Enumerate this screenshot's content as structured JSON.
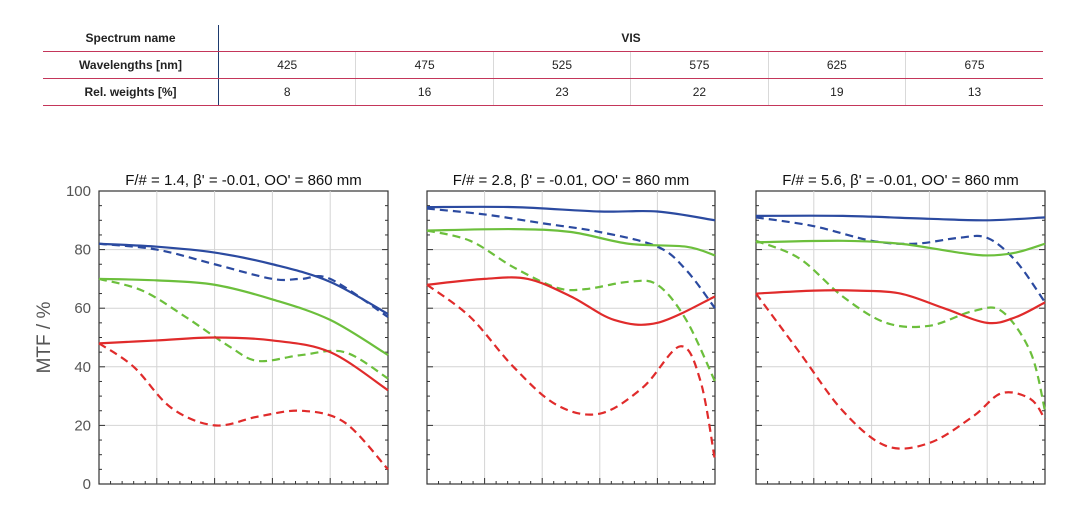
{
  "table": {
    "rows": [
      {
        "label": "Spectrum name",
        "span_value": "VIS"
      },
      {
        "label": "Wavelengths [nm]",
        "values": [
          "425",
          "475",
          "525",
          "575",
          "625",
          "675"
        ]
      },
      {
        "label": "Rel. weights [%]",
        "values": [
          "8",
          "16",
          "23",
          "22",
          "19",
          "13"
        ]
      }
    ]
  },
  "chart_data": [
    {
      "type": "line",
      "title": "F/# = 1.4, β' = -0.01, OO' = 860 mm",
      "ylabel": "MTF / %",
      "ylim": [
        0,
        100
      ],
      "yticks": [
        "0",
        "20",
        "40",
        "60",
        "80",
        "100"
      ],
      "grid": true,
      "series": [
        {
          "color": "#2b4aa0",
          "style": "solid",
          "x": [
            0,
            0.2,
            0.4,
            0.6,
            0.8,
            1.0
          ],
          "values": [
            82,
            81,
            79,
            75,
            69,
            58
          ]
        },
        {
          "color": "#2b4aa0",
          "style": "dashed",
          "x": [
            0,
            0.2,
            0.4,
            0.6,
            0.7,
            0.8,
            1.0
          ],
          "values": [
            82,
            80,
            75,
            70,
            70,
            70,
            57
          ]
        },
        {
          "color": "#6cbf3c",
          "style": "solid",
          "x": [
            0,
            0.2,
            0.4,
            0.6,
            0.8,
            1.0
          ],
          "values": [
            70,
            69.5,
            68,
            63,
            56,
            44
          ]
        },
        {
          "color": "#6cbf3c",
          "style": "dashed",
          "x": [
            0,
            0.15,
            0.3,
            0.45,
            0.55,
            0.7,
            0.85,
            1.0
          ],
          "values": [
            70,
            66,
            57,
            47,
            42,
            44,
            45,
            36
          ]
        },
        {
          "color": "#e02b2b",
          "style": "solid",
          "x": [
            0,
            0.2,
            0.4,
            0.6,
            0.8,
            1.0
          ],
          "values": [
            48,
            49,
            50,
            49,
            45,
            32
          ]
        },
        {
          "color": "#e02b2b",
          "style": "dashed",
          "x": [
            0,
            0.12,
            0.25,
            0.4,
            0.55,
            0.7,
            0.85,
            1.0
          ],
          "values": [
            48,
            40,
            26,
            20,
            23,
            25,
            21,
            5
          ]
        }
      ]
    },
    {
      "type": "line",
      "title": "F/# = 2.8, β' = -0.01, OO' = 860 mm",
      "ylim": [
        0,
        100
      ],
      "yticks": [
        "0",
        "20",
        "40",
        "60",
        "80",
        "100"
      ],
      "grid": true,
      "series": [
        {
          "color": "#2b4aa0",
          "style": "solid",
          "x": [
            0,
            0.3,
            0.6,
            0.8,
            1.0
          ],
          "values": [
            94.5,
            94.5,
            93,
            93,
            90
          ]
        },
        {
          "color": "#2b4aa0",
          "style": "dashed",
          "x": [
            0,
            0.2,
            0.4,
            0.6,
            0.8,
            0.9,
            1.0
          ],
          "values": [
            94,
            92,
            89,
            86,
            81,
            73,
            60
          ]
        },
        {
          "color": "#6cbf3c",
          "style": "solid",
          "x": [
            0,
            0.3,
            0.5,
            0.7,
            0.9,
            1.0
          ],
          "values": [
            86.5,
            87,
            86,
            82,
            81,
            78
          ]
        },
        {
          "color": "#6cbf3c",
          "style": "dashed",
          "x": [
            0,
            0.15,
            0.3,
            0.45,
            0.55,
            0.7,
            0.8,
            0.9,
            1.0
          ],
          "values": [
            86.5,
            83,
            74,
            67,
            66.5,
            69,
            68,
            56,
            35
          ]
        },
        {
          "color": "#e02b2b",
          "style": "solid",
          "x": [
            0,
            0.2,
            0.35,
            0.5,
            0.65,
            0.8,
            1.0
          ],
          "values": [
            68,
            70,
            70,
            64,
            56,
            55,
            64
          ]
        },
        {
          "color": "#e02b2b",
          "style": "dashed",
          "x": [
            0,
            0.15,
            0.3,
            0.45,
            0.6,
            0.75,
            0.88,
            0.95,
            1.0
          ],
          "values": [
            68,
            57,
            40,
            27,
            24,
            33,
            47,
            35,
            8
          ]
        }
      ]
    },
    {
      "type": "line",
      "title": "F/# = 5.6, β' = -0.01, OO' = 860 mm",
      "ylim": [
        0,
        100
      ],
      "yticks": [
        "0",
        "20",
        "40",
        "60",
        "80",
        "100"
      ],
      "grid": true,
      "series": [
        {
          "color": "#2b4aa0",
          "style": "solid",
          "x": [
            0,
            0.3,
            0.6,
            0.8,
            1.0
          ],
          "values": [
            91.5,
            91.5,
            90.5,
            90,
            91
          ]
        },
        {
          "color": "#2b4aa0",
          "style": "dashed",
          "x": [
            0,
            0.2,
            0.4,
            0.55,
            0.7,
            0.8,
            0.9,
            1.0
          ],
          "values": [
            91,
            88,
            83,
            82,
            84,
            84,
            76,
            62
          ]
        },
        {
          "color": "#6cbf3c",
          "style": "solid",
          "x": [
            0,
            0.3,
            0.5,
            0.7,
            0.8,
            0.9,
            1.0
          ],
          "values": [
            82.5,
            83,
            82,
            79,
            78,
            79,
            82
          ]
        },
        {
          "color": "#6cbf3c",
          "style": "dashed",
          "x": [
            0,
            0.15,
            0.3,
            0.45,
            0.6,
            0.75,
            0.85,
            0.95,
            1.0
          ],
          "values": [
            83,
            77,
            64,
            55,
            54,
            59,
            59,
            45,
            25
          ]
        },
        {
          "color": "#e02b2b",
          "style": "solid",
          "x": [
            0,
            0.2,
            0.35,
            0.5,
            0.65,
            0.8,
            0.9,
            1.0
          ],
          "values": [
            65,
            66,
            66,
            65,
            60,
            55,
            57,
            62
          ]
        },
        {
          "color": "#e02b2b",
          "style": "dashed",
          "x": [
            0,
            0.15,
            0.3,
            0.45,
            0.6,
            0.75,
            0.85,
            0.95,
            1.0
          ],
          "values": [
            65,
            45,
            25,
            13,
            14,
            23,
            31,
            29,
            22
          ]
        }
      ]
    }
  ]
}
